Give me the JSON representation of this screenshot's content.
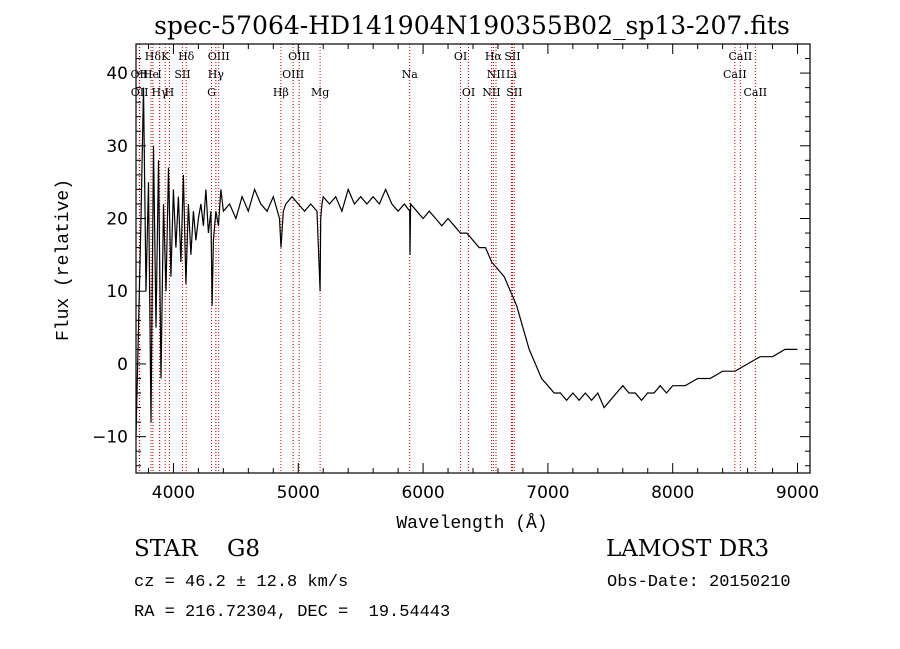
{
  "chart_data": {
    "type": "line",
    "title": "spec-57064-HD141904N190355B02_sp13-207.fits",
    "xlabel": "Wavelength (Å)",
    "ylabel": "Flux (relative)",
    "xlim": [
      3700,
      9100
    ],
    "ylim": [
      -15,
      44
    ],
    "xticks": [
      4000,
      5000,
      6000,
      7000,
      8000,
      9000
    ],
    "yticks": [
      -10,
      0,
      10,
      20,
      30,
      40
    ],
    "xtick_labels": [
      "4000",
      "5000",
      "6000",
      "7000",
      "8000",
      "9000"
    ],
    "ytick_labels": [
      "−10",
      "0",
      "10",
      "20",
      "30",
      "40"
    ],
    "series": [
      {
        "name": "flux",
        "x": [
          3700,
          3720,
          3740,
          3760,
          3780,
          3800,
          3820,
          3840,
          3860,
          3880,
          3900,
          3920,
          3940,
          3960,
          3980,
          4000,
          4020,
          4040,
          4060,
          4080,
          4100,
          4120,
          4140,
          4160,
          4180,
          4200,
          4220,
          4240,
          4260,
          4280,
          4300,
          4310,
          4320,
          4340,
          4360,
          4380,
          4400,
          4450,
          4500,
          4550,
          4600,
          4650,
          4700,
          4750,
          4800,
          4850,
          4862,
          4880,
          4900,
          4950,
          5000,
          5050,
          5100,
          5150,
          5175,
          5180,
          5190,
          5200,
          5250,
          5300,
          5350,
          5400,
          5450,
          5500,
          5550,
          5600,
          5650,
          5700,
          5750,
          5800,
          5850,
          5893,
          5895,
          5900,
          5950,
          6000,
          6050,
          6100,
          6150,
          6200,
          6250,
          6300,
          6350,
          6400,
          6450,
          6500,
          6550,
          6600,
          6650,
          6700,
          6750,
          6800,
          6850,
          6900,
          6950,
          7000,
          7050,
          7100,
          7150,
          7200,
          7250,
          7300,
          7350,
          7400,
          7450,
          7500,
          7550,
          7600,
          7650,
          7700,
          7750,
          7800,
          7850,
          7900,
          7950,
          8000,
          8100,
          8200,
          8300,
          8400,
          8500,
          8600,
          8700,
          8800,
          8900,
          9000
        ],
        "y": [
          -10,
          5,
          20,
          38,
          10,
          25,
          -8,
          30,
          5,
          28,
          -2,
          22,
          10,
          27,
          12,
          24,
          16,
          23,
          14,
          26,
          11,
          22,
          15,
          21,
          17,
          20,
          22,
          19,
          24,
          18,
          21,
          8,
          17,
          21,
          19,
          24,
          21,
          22,
          20,
          23,
          21,
          24,
          22,
          21,
          23,
          20,
          16,
          21,
          22,
          23,
          22,
          21,
          22,
          21,
          10,
          20,
          22,
          23,
          22,
          23,
          21,
          24,
          22,
          23,
          22,
          23,
          22,
          24,
          22,
          21,
          22,
          21,
          15,
          22,
          21,
          20,
          21,
          20,
          19,
          20,
          19,
          18,
          18,
          17,
          16,
          16,
          14,
          13,
          12,
          10,
          8,
          5,
          2,
          0,
          -2,
          -3,
          -4,
          -4,
          -5,
          -4,
          -5,
          -4,
          -5,
          -4,
          -6,
          -5,
          -4,
          -3,
          -4,
          -4,
          -5,
          -4,
          -4,
          -3,
          -4,
          -3,
          -3,
          -2,
          -2,
          -1,
          -1,
          0,
          1,
          1,
          2,
          2
        ]
      }
    ],
    "lines": [
      {
        "label": "Hδ",
        "x": 3835,
        "row": 0
      },
      {
        "label": "K",
        "x": 3934,
        "row": 0
      },
      {
        "label": "Hδ",
        "x": 4102,
        "row": 0
      },
      {
        "label": "OIII",
        "x": 4363,
        "row": 0
      },
      {
        "label": "OIII",
        "x": 5007,
        "row": 0
      },
      {
        "label": "OI",
        "x": 6300,
        "row": 0
      },
      {
        "label": "Hα",
        "x": 6563,
        "row": 0
      },
      {
        "label": "SII",
        "x": 6716,
        "row": 0
      },
      {
        "label": "CaII",
        "x": 8542,
        "row": 0
      },
      {
        "label": "OII",
        "x": 3727,
        "row": 1
      },
      {
        "label": "He",
        "x": 3820,
        "row": 1
      },
      {
        "label": "I",
        "x": 3889,
        "row": 1
      },
      {
        "label": "SII",
        "x": 4072,
        "row": 1
      },
      {
        "label": "Hγ",
        "x": 4340,
        "row": 1
      },
      {
        "label": "OIII",
        "x": 4959,
        "row": 1
      },
      {
        "label": "Na",
        "x": 5893,
        "row": 1
      },
      {
        "label": "NII",
        "x": 6584,
        "row": 1
      },
      {
        "label": "Li",
        "x": 6708,
        "row": 1
      },
      {
        "label": "CaII",
        "x": 8498,
        "row": 1
      },
      {
        "label": "OII",
        "x": 3729,
        "row": 2
      },
      {
        "label": "Hγ",
        "x": 3889,
        "row": 2
      },
      {
        "label": "H",
        "x": 3968,
        "row": 2
      },
      {
        "label": "G",
        "x": 4305,
        "row": 2
      },
      {
        "label": "Hβ",
        "x": 4861,
        "row": 2
      },
      {
        "label": "Mg",
        "x": 5175,
        "row": 2
      },
      {
        "label": "OI",
        "x": 6364,
        "row": 2
      },
      {
        "label": "NII",
        "x": 6548,
        "row": 2
      },
      {
        "label": "SII",
        "x": 6731,
        "row": 2
      },
      {
        "label": "CaII",
        "x": 8662,
        "row": 2
      }
    ],
    "line_color": "#c80000",
    "spectrum_color": "#000000"
  },
  "info": {
    "star_type": "STAR    G8",
    "survey": "LAMOST DR3",
    "cz": "cz = 46.2 ± 12.8 km/s",
    "obs_date": "Obs-Date: 20150210",
    "radec": "RA = 216.72304, DEC =  19.54443"
  }
}
